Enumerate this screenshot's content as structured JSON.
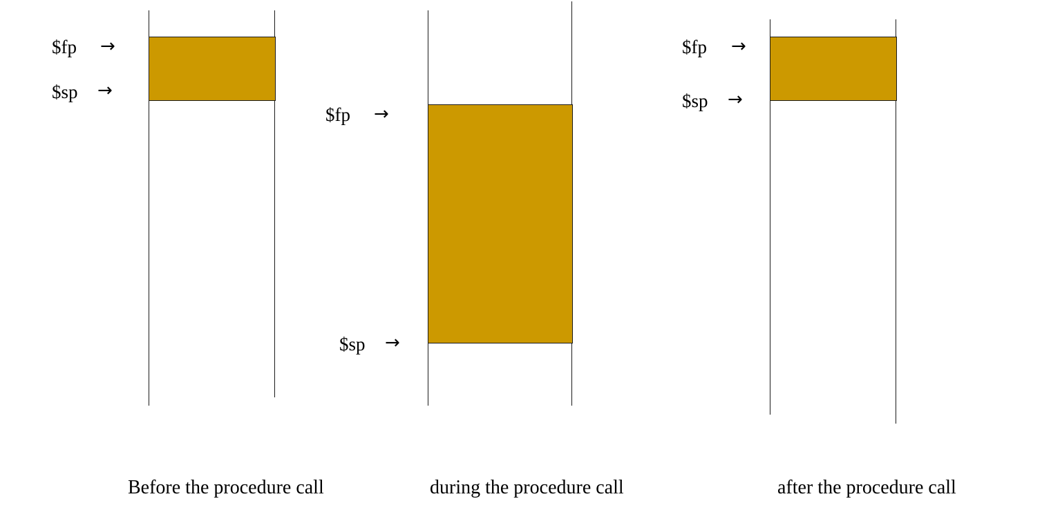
{
  "colors": {
    "frame_fill": "#cc9900",
    "line": "#1a1a1a"
  },
  "icons": {
    "pointer_arrow": "→"
  },
  "panels": [
    {
      "fp_label": "$fp",
      "sp_label": "$sp",
      "caption": "Before  the procedure call"
    },
    {
      "fp_label": "$fp",
      "sp_label": "$sp",
      "caption": "during the procedure call"
    },
    {
      "fp_label": "$fp",
      "sp_label": "$sp",
      "caption": "after the procedure call"
    }
  ]
}
